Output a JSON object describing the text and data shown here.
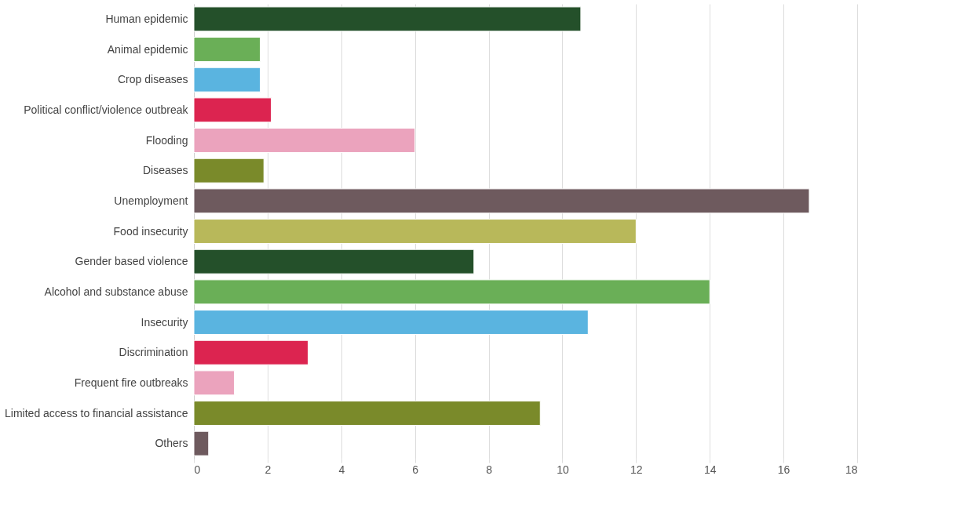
{
  "chart_data": {
    "type": "bar",
    "orientation": "horizontal",
    "categories": [
      "Human epidemic",
      "Animal  epidemic",
      "Crop diseases",
      "Political conflict/violence outbreak",
      "Flooding",
      "Diseases",
      "Unemployment",
      "Food insecurity",
      "Gender based violence",
      "Alcohol and substance abuse",
      "Insecurity",
      "Discrimination",
      "Frequent fire outbreaks",
      "Limited access to financial assistance",
      "Others"
    ],
    "values": [
      10.5,
      1.8,
      1.8,
      2.1,
      6.0,
      1.9,
      16.7,
      12.0,
      7.6,
      14.0,
      10.7,
      3.1,
      1.1,
      9.4,
      0.4
    ],
    "colors": [
      "#24502a",
      "#6aaf57",
      "#5ab4e0",
      "#dc2450",
      "#eba3bd",
      "#7a8a2a",
      "#6e5a5e",
      "#b8b85a",
      "#24502a",
      "#6aaf57",
      "#5ab4e0",
      "#dc2450",
      "#eba3bd",
      "#7a8a2a",
      "#6e5a5e"
    ],
    "xlim": [
      0,
      18
    ],
    "xticks": [
      0,
      2,
      4,
      6,
      8,
      10,
      12,
      14,
      16,
      18
    ],
    "grid": "x"
  }
}
